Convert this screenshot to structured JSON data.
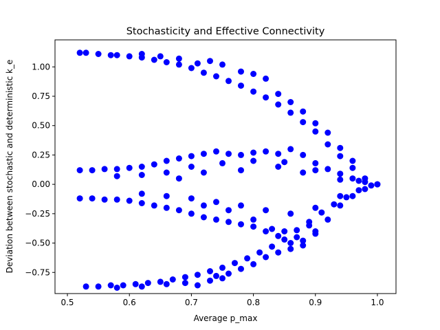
{
  "chart_data": {
    "type": "scatter",
    "title": "Stochasticity and Effective Connectivity",
    "xlabel": "Average p_max",
    "ylabel": "Deviation between stochastic and deterministic k_e",
    "xlim": [
      0.48,
      1.03
    ],
    "ylim": [
      -0.93,
      1.23
    ],
    "xticks": [
      0.5,
      0.6,
      0.7,
      0.8,
      0.9,
      1.0
    ],
    "xtick_labels": [
      "0.5",
      "0.6",
      "0.7",
      "0.8",
      "0.9",
      "1.0"
    ],
    "yticks": [
      -0.75,
      -0.5,
      -0.25,
      0.0,
      0.25,
      0.5,
      0.75,
      1.0
    ],
    "ytick_labels": [
      "−0.75",
      "−0.50",
      "−0.25",
      "0.00",
      "0.25",
      "0.50",
      "0.75",
      "1.00"
    ],
    "grid": false,
    "legend": false,
    "marker_color": "#0000ff",
    "series": [
      {
        "points": [
          [
            0.52,
            1.12
          ],
          [
            0.53,
            1.12
          ],
          [
            0.55,
            1.11
          ],
          [
            0.57,
            1.1
          ],
          [
            0.58,
            1.1
          ],
          [
            0.6,
            1.09
          ],
          [
            0.62,
            1.08
          ],
          [
            0.64,
            1.06
          ],
          [
            0.66,
            1.04
          ],
          [
            0.68,
            1.02
          ],
          [
            0.7,
            0.99
          ],
          [
            0.72,
            0.95
          ],
          [
            0.74,
            0.92
          ],
          [
            0.76,
            0.88
          ],
          [
            0.78,
            0.84
          ],
          [
            0.8,
            0.79
          ],
          [
            0.82,
            0.74
          ],
          [
            0.84,
            0.68
          ],
          [
            0.86,
            0.61
          ],
          [
            0.88,
            0.53
          ],
          [
            0.9,
            0.45
          ],
          [
            0.92,
            0.34
          ],
          [
            0.94,
            0.24
          ],
          [
            0.96,
            0.14
          ],
          [
            0.98,
            0.05
          ],
          [
            1.0,
            0.0
          ],
          [
            0.73,
            1.05
          ],
          [
            0.75,
            1.02
          ],
          [
            0.78,
            0.96
          ],
          [
            0.8,
            0.94
          ],
          [
            0.82,
            0.9
          ],
          [
            0.84,
            0.77
          ],
          [
            0.86,
            0.7
          ],
          [
            0.88,
            0.62
          ],
          [
            0.9,
            0.52
          ],
          [
            0.92,
            0.44
          ],
          [
            0.94,
            0.31
          ],
          [
            0.96,
            0.2
          ],
          [
            0.71,
            1.03
          ],
          [
            0.68,
            1.07
          ],
          [
            0.65,
            1.09
          ],
          [
            0.62,
            1.11
          ]
        ]
      },
      {
        "points": [
          [
            0.52,
            0.12
          ],
          [
            0.54,
            0.12
          ],
          [
            0.56,
            0.13
          ],
          [
            0.58,
            0.13
          ],
          [
            0.6,
            0.14
          ],
          [
            0.62,
            0.15
          ],
          [
            0.64,
            0.17
          ],
          [
            0.66,
            0.2
          ],
          [
            0.68,
            0.22
          ],
          [
            0.7,
            0.24
          ],
          [
            0.72,
            0.26
          ],
          [
            0.74,
            0.28
          ],
          [
            0.76,
            0.26
          ],
          [
            0.78,
            0.25
          ],
          [
            0.8,
            0.27
          ],
          [
            0.82,
            0.28
          ],
          [
            0.84,
            0.26
          ],
          [
            0.86,
            0.3
          ],
          [
            0.88,
            0.25
          ],
          [
            0.9,
            0.18
          ],
          [
            0.92,
            0.13
          ],
          [
            0.94,
            0.09
          ],
          [
            0.96,
            0.05
          ],
          [
            0.98,
            0.02
          ],
          [
            1.0,
            0.0
          ],
          [
            0.66,
            0.1
          ],
          [
            0.7,
            0.15
          ],
          [
            0.75,
            0.18
          ],
          [
            0.8,
            0.2
          ],
          [
            0.85,
            0.19
          ],
          [
            0.9,
            0.12
          ],
          [
            0.62,
            0.08
          ],
          [
            0.58,
            0.07
          ],
          [
            0.68,
            0.05
          ],
          [
            0.72,
            0.1
          ],
          [
            0.78,
            0.12
          ],
          [
            0.84,
            0.15
          ],
          [
            0.88,
            0.1
          ],
          [
            0.94,
            0.04
          ],
          [
            0.97,
            0.03
          ]
        ]
      },
      {
        "points": [
          [
            0.52,
            -0.12
          ],
          [
            0.54,
            -0.12
          ],
          [
            0.56,
            -0.13
          ],
          [
            0.58,
            -0.13
          ],
          [
            0.6,
            -0.14
          ],
          [
            0.62,
            -0.16
          ],
          [
            0.64,
            -0.18
          ],
          [
            0.66,
            -0.2
          ],
          [
            0.68,
            -0.22
          ],
          [
            0.7,
            -0.25
          ],
          [
            0.72,
            -0.28
          ],
          [
            0.74,
            -0.3
          ],
          [
            0.76,
            -0.32
          ],
          [
            0.78,
            -0.34
          ],
          [
            0.8,
            -0.36
          ],
          [
            0.82,
            -0.4
          ],
          [
            0.84,
            -0.44
          ],
          [
            0.86,
            -0.5
          ],
          [
            0.88,
            -0.52
          ],
          [
            0.9,
            -0.42
          ],
          [
            0.92,
            -0.3
          ],
          [
            0.94,
            -0.18
          ],
          [
            0.96,
            -0.1
          ],
          [
            0.98,
            -0.04
          ],
          [
            0.62,
            -0.08
          ],
          [
            0.66,
            -0.1
          ],
          [
            0.7,
            -0.12
          ],
          [
            0.74,
            -0.15
          ],
          [
            0.78,
            -0.18
          ],
          [
            0.82,
            -0.22
          ],
          [
            0.86,
            -0.25
          ],
          [
            0.9,
            -0.2
          ],
          [
            0.94,
            -0.1
          ],
          [
            0.85,
            -0.4
          ],
          [
            0.83,
            -0.38
          ],
          [
            0.87,
            -0.45
          ],
          [
            0.89,
            -0.35
          ],
          [
            0.8,
            -0.3
          ],
          [
            0.76,
            -0.22
          ],
          [
            0.72,
            -0.18
          ]
        ]
      },
      {
        "points": [
          [
            0.53,
            -0.87
          ],
          [
            0.55,
            -0.87
          ],
          [
            0.57,
            -0.86
          ],
          [
            0.59,
            -0.86
          ],
          [
            0.61,
            -0.85
          ],
          [
            0.63,
            -0.84
          ],
          [
            0.65,
            -0.83
          ],
          [
            0.67,
            -0.81
          ],
          [
            0.69,
            -0.79
          ],
          [
            0.71,
            -0.77
          ],
          [
            0.73,
            -0.74
          ],
          [
            0.75,
            -0.71
          ],
          [
            0.77,
            -0.67
          ],
          [
            0.79,
            -0.63
          ],
          [
            0.81,
            -0.58
          ],
          [
            0.83,
            -0.53
          ],
          [
            0.85,
            -0.47
          ],
          [
            0.87,
            -0.39
          ],
          [
            0.89,
            -0.32
          ],
          [
            0.91,
            -0.24
          ],
          [
            0.93,
            -0.17
          ],
          [
            0.95,
            -0.11
          ],
          [
            0.97,
            -0.05
          ],
          [
            0.99,
            -0.01
          ],
          [
            0.71,
            -0.86
          ],
          [
            0.73,
            -0.82
          ],
          [
            0.75,
            -0.8
          ],
          [
            0.76,
            -0.76
          ],
          [
            0.78,
            -0.72
          ],
          [
            0.8,
            -0.68
          ],
          [
            0.82,
            -0.62
          ],
          [
            0.84,
            -0.58
          ],
          [
            0.86,
            -0.55
          ],
          [
            0.88,
            -0.48
          ],
          [
            0.9,
            -0.4
          ],
          [
            0.74,
            -0.78
          ],
          [
            0.69,
            -0.84
          ],
          [
            0.66,
            -0.85
          ],
          [
            0.62,
            -0.87
          ],
          [
            0.58,
            -0.88
          ]
        ]
      }
    ]
  }
}
